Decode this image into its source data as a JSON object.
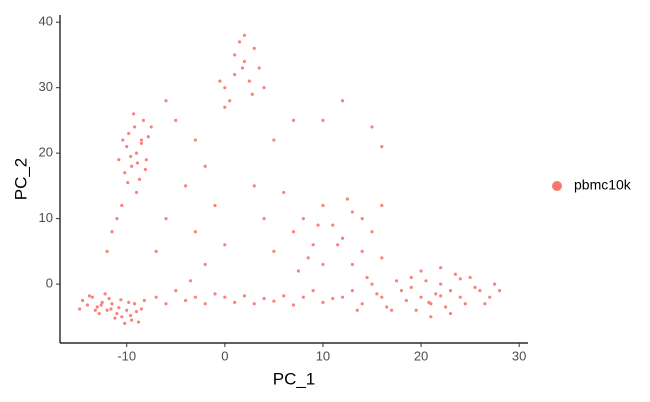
{
  "chart_data": {
    "type": "scatter",
    "x_label": "PC_1",
    "y_label": "PC_2",
    "xlim": [
      -16.8,
      30.9
    ],
    "ylim": [
      -9,
      41.1
    ],
    "xticks": [
      -10,
      0,
      10,
      20,
      30
    ],
    "yticks": [
      0,
      10,
      20,
      30,
      40
    ],
    "grid": false,
    "legend": "right",
    "series": [
      {
        "name": "pbmc10k",
        "color": "#F8766D",
        "x": [
          -14.5,
          -14,
          -13.5,
          -13,
          -12.5,
          -12,
          -11.5,
          -11,
          -10.5,
          -10,
          -9.5,
          -9,
          -8.5,
          -13.8,
          -12.8,
          -11.8,
          -10.8,
          -9.8,
          -8.8,
          -11.2,
          -12.2,
          -13.2,
          -10.2,
          -9.2,
          -14.8,
          -8.2,
          -11.6,
          -12.6,
          -10.6,
          -9.6,
          -9,
          -8.5,
          -9.5,
          -8,
          -10,
          -9.2,
          -8.7,
          -9.8,
          -8.3,
          -10.2,
          -9,
          -10.5,
          -11,
          -8.5,
          -9.6,
          -7.8,
          -10.8,
          -9.3,
          -8.1,
          -9.9,
          -11.5,
          -12,
          -7.5,
          -10.4,
          -8.9,
          12,
          13,
          14,
          15,
          16,
          17,
          18,
          19,
          20,
          21,
          22,
          23,
          24,
          25,
          26,
          27,
          28,
          19.5,
          20.5,
          21.5,
          22.5,
          23.5,
          18.5,
          17.5,
          16.5,
          24.5,
          25.5,
          20,
          22,
          21,
          23,
          15.5,
          14.5,
          26.5,
          27.5,
          19,
          22,
          20.8,
          24,
          13.5,
          0,
          1,
          2,
          3,
          1.5,
          2.5,
          0.5,
          3.5,
          -0.5,
          1,
          2,
          4,
          0,
          2.8,
          1.8,
          -7,
          -6,
          -5,
          -4,
          -3,
          -2,
          -1,
          0,
          1,
          2,
          3,
          4,
          5,
          6,
          7,
          8,
          9,
          10,
          11,
          -3.5,
          7,
          8,
          9,
          10,
          11,
          12,
          13,
          14,
          15,
          16,
          8.5,
          10,
          12.5,
          11.5,
          14,
          9.5,
          13,
          7.5,
          16,
          5,
          -6,
          -5,
          -3,
          -2,
          -4,
          -1,
          -6,
          -3,
          0,
          3,
          5,
          7,
          10,
          12,
          15,
          16,
          -7,
          -2,
          4,
          6
        ],
        "values": [
          -2.5,
          -3.2,
          -2,
          -3.5,
          -2.8,
          -4,
          -3,
          -4.5,
          -5,
          -4,
          -5.5,
          -4.2,
          -3.8,
          -1.8,
          -4.5,
          -2.2,
          -3.6,
          -2.8,
          -5.8,
          -5.2,
          -1.5,
          -4,
          -6,
          -3,
          -3.8,
          -2.5,
          -3.8,
          -3.2,
          -2.4,
          -4.8,
          20,
          22,
          18,
          19,
          21,
          24,
          16,
          23,
          25,
          17,
          14,
          12,
          10,
          21.5,
          19.5,
          22.5,
          19,
          26,
          17.5,
          15.5,
          8,
          5,
          24,
          22,
          18.5,
          -2,
          -1,
          -3,
          0,
          -2,
          -4,
          -1,
          1,
          -2,
          -3,
          0,
          -1,
          -2,
          1,
          -1,
          -2,
          -1,
          -4,
          0.5,
          -1.5,
          -3.5,
          1.5,
          -2.5,
          0.5,
          -3.5,
          -3,
          -0.5,
          2,
          2.5,
          -5,
          -4.5,
          -1.5,
          1,
          -3,
          0,
          -0.5,
          -1.8,
          -2.8,
          0.8,
          -4,
          30,
          32,
          34,
          36,
          37,
          31,
          28,
          33,
          31,
          35,
          38,
          30,
          27,
          29,
          33,
          -2,
          -3,
          -1,
          -2.5,
          -2,
          -3,
          -1.5,
          -2,
          -2.8,
          -1.8,
          -3,
          -2.2,
          -2.6,
          -1.8,
          -3.2,
          -2,
          -1,
          -2.8,
          -2.2,
          0.5,
          8,
          10,
          6,
          12,
          9,
          7,
          11,
          5,
          8,
          4,
          4,
          3,
          13,
          6,
          10,
          9,
          3,
          2,
          12,
          5,
          28,
          25,
          22,
          18,
          15,
          12,
          10,
          8,
          6,
          15,
          22,
          25,
          25,
          28,
          24,
          21,
          5,
          3,
          10,
          14
        ]
      }
    ]
  }
}
